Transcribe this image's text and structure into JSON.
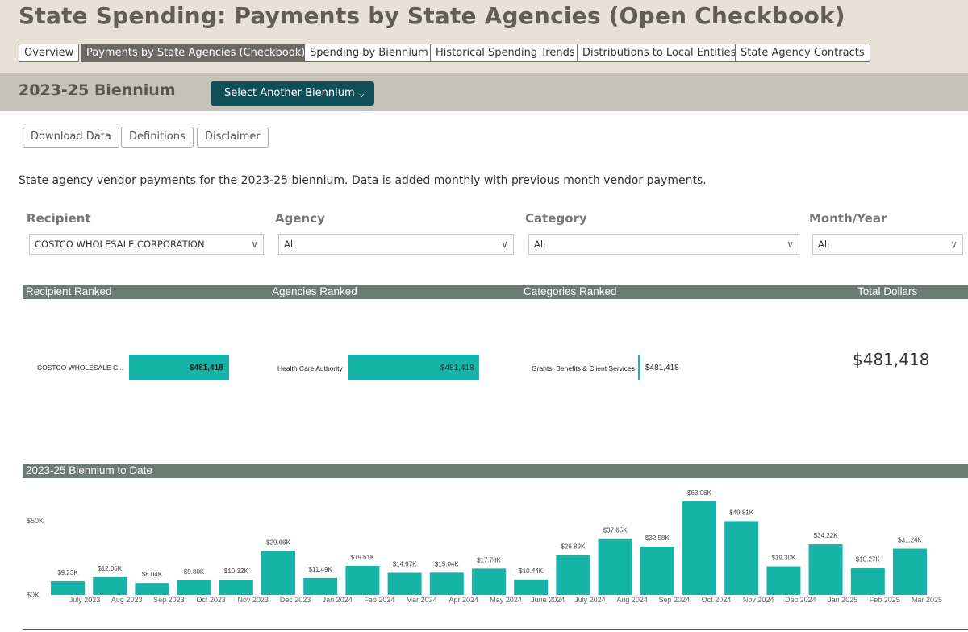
{
  "header": {
    "title": "State Spending: Payments by State Agencies (Open Checkbook)",
    "tabs": [
      {
        "label": "Overview",
        "active": false
      },
      {
        "label": "Payments by State Agencies (Checkbook)",
        "active": true
      },
      {
        "label": "Spending by Biennium",
        "active": false
      },
      {
        "label": "Historical Spending Trends",
        "active": false
      },
      {
        "label": "Distributions to Local Entities",
        "active": false
      },
      {
        "label": "State Agency Contracts",
        "active": false
      }
    ]
  },
  "biennium": {
    "title": "2023-25 Biennium",
    "select_label": "Select Another Biennium"
  },
  "actions": {
    "download": "Download Data",
    "definitions": "Definitions",
    "disclaimer": "Disclaimer"
  },
  "description": "State agency vendor payments for the 2023-25 biennium. Data is added monthly with previous month vendor payments.",
  "filters": {
    "recipient": {
      "label": "Recipient",
      "value": "COSTCO WHOLESALE CORPORATION"
    },
    "agency": {
      "label": "Agency",
      "value": "All"
    },
    "category": {
      "label": "Category",
      "value": "All"
    },
    "monthyear": {
      "label": "Month/Year",
      "value": "All"
    }
  },
  "ranked": {
    "recipient_header": "Recipient Ranked",
    "agencies_header": "Agencies Ranked",
    "categories_header": "Categories Ranked",
    "total_header": "Total Dollars",
    "recipient_row": {
      "label": "COSTCO WHOLESALE C...",
      "value": "$481,418"
    },
    "agency_row": {
      "label": "Health Care Authority",
      "value": "$481,418"
    },
    "category_row": {
      "label": "Grants, Benefits & Client Services",
      "value": "$481,418"
    },
    "total_value": "$481,418"
  },
  "colors": {
    "accent": "#16b5a8",
    "header_bg": "#e6e2d8",
    "bar_header": "#6d7b75",
    "select_btn": "#0f4f57"
  },
  "chart_header": "2023-25  Biennium to Date",
  "chart_data": {
    "type": "bar",
    "categories": [
      "July 2023",
      "Aug 2023",
      "Sep 2023",
      "Oct 2023",
      "Nov 2023",
      "Dec 2023",
      "Jan 2024",
      "Feb 2024",
      "Mar 2024",
      "Apr 2024",
      "May 2024",
      "June 2024",
      "July 2024",
      "Aug 2024",
      "Sep 2024",
      "Oct 2024",
      "Nov 2024",
      "Dec 2024",
      "Jan 2025",
      "Feb 2025",
      "Mar 2025"
    ],
    "values": [
      9230,
      12050,
      8040,
      9800,
      10320,
      29660,
      11490,
      19610,
      14970,
      15040,
      17760,
      10440,
      26890,
      37650,
      32580,
      63060,
      49810,
      19300,
      34220,
      18270,
      31240
    ],
    "labels": [
      "$9.23K",
      "$12.05K",
      "$8.04K",
      "$9.80K",
      "$10.32K",
      "$29.66K",
      "$11.49K",
      "$19.61K",
      "$14.97K",
      "$15.04K",
      "$17.76K",
      "$10.44K",
      "$26.89K",
      "$37.65K",
      "$32.58K",
      "$63.06K",
      "$49.81K",
      "$19.30K",
      "$34.22K",
      "$18.27K",
      "$31.24K"
    ],
    "yticks": [
      "$0K",
      "$50K"
    ],
    "ytick_values": [
      0,
      50000
    ],
    "ylim": [
      0,
      63060
    ],
    "color": "#16b5a8",
    "grid": false
  }
}
